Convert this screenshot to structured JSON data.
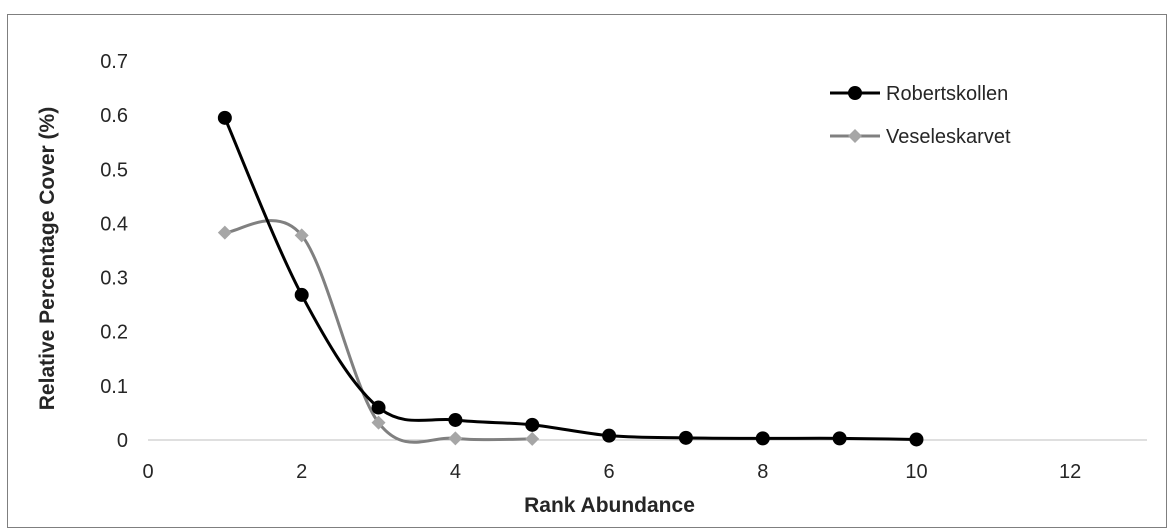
{
  "chart_data": {
    "type": "scatter",
    "title": "",
    "xlabel": "Rank Abundance",
    "ylabel": "Relative Percentage Cover (%)",
    "xlim": [
      0,
      13
    ],
    "ylim": [
      0,
      0.7
    ],
    "xticks": [
      0,
      2,
      4,
      6,
      8,
      10,
      12
    ],
    "yticks": [
      0,
      0.1,
      0.2,
      0.3,
      0.4,
      0.5,
      0.6,
      0.7
    ],
    "grid": false,
    "smooth_lines": true,
    "legend_position": "top-right",
    "series": [
      {
        "name": "Robertskollen",
        "marker": "circle",
        "color": "#000000",
        "x": [
          1,
          2,
          3,
          4,
          5,
          6,
          7,
          8,
          9,
          10
        ],
        "y": [
          0.595,
          0.268,
          0.06,
          0.037,
          0.028,
          0.008,
          0.004,
          0.003,
          0.003,
          0.001
        ]
      },
      {
        "name": "Veseleskarvet",
        "marker": "diamond",
        "color": "#a6a6a6",
        "line_color": "#808080",
        "x": [
          1,
          2,
          3,
          4,
          5
        ],
        "y": [
          0.383,
          0.378,
          0.032,
          0.003,
          0.002
        ]
      }
    ]
  }
}
